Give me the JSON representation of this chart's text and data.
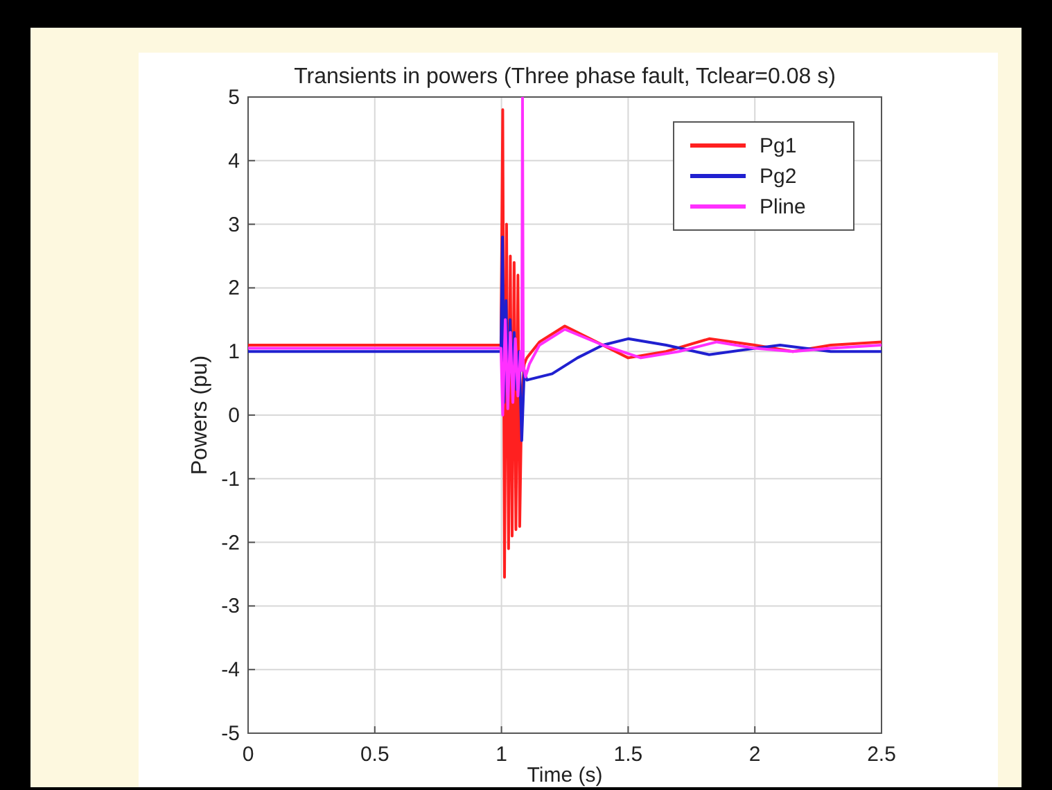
{
  "chart_data": {
    "type": "line",
    "title": "Transients in powers (Three phase fault, Tclear=0.08 s)",
    "xlabel": "Time (s)",
    "ylabel": "Powers (pu)",
    "xlim": [
      0,
      2.5
    ],
    "ylim": [
      -5,
      5
    ],
    "xticks": [
      0,
      0.5,
      1,
      1.5,
      2,
      2.5
    ],
    "yticks": [
      -5,
      -4,
      -3,
      -2,
      -1,
      0,
      1,
      2,
      3,
      4,
      5
    ],
    "grid": true,
    "legend": "top right",
    "line_style": "solid",
    "marker": "none",
    "series": [
      {
        "name": "Pg1",
        "color": "#ff2020",
        "x": [
          0,
          0.998,
          1.005,
          1.012,
          1.02,
          1.028,
          1.035,
          1.042,
          1.05,
          1.057,
          1.065,
          1.072,
          1.08,
          1.09,
          1.1,
          1.15,
          1.25,
          1.35,
          1.5,
          1.65,
          1.82,
          2.0,
          2.15,
          2.3,
          2.5
        ],
        "values": [
          1.1,
          1.1,
          4.8,
          -2.55,
          3.0,
          -2.1,
          2.5,
          -1.9,
          2.4,
          -1.8,
          2.2,
          -1.75,
          0.3,
          0.8,
          0.9,
          1.15,
          1.4,
          1.2,
          0.9,
          1.0,
          1.2,
          1.1,
          1.0,
          1.1,
          1.15
        ]
      },
      {
        "name": "Pg2",
        "color": "#2020d0",
        "x": [
          0,
          0.998,
          1.004,
          1.01,
          1.018,
          1.026,
          1.034,
          1.042,
          1.05,
          1.06,
          1.07,
          1.08,
          1.09,
          1.1,
          1.2,
          1.3,
          1.4,
          1.5,
          1.65,
          1.82,
          2.0,
          2.1,
          2.3,
          2.5
        ],
        "values": [
          1.0,
          1.0,
          2.8,
          0.2,
          1.8,
          0.3,
          1.5,
          0.5,
          1.3,
          0.4,
          1.0,
          -0.4,
          0.7,
          0.55,
          0.65,
          0.9,
          1.1,
          1.2,
          1.1,
          0.95,
          1.05,
          1.1,
          1.0,
          1.0
        ]
      },
      {
        "name": "Pline",
        "color": "#ff30ff",
        "x": [
          0,
          0.998,
          1.005,
          1.015,
          1.025,
          1.035,
          1.045,
          1.055,
          1.065,
          1.075,
          1.08,
          1.083,
          1.086,
          1.095,
          1.11,
          1.15,
          1.25,
          1.4,
          1.55,
          1.7,
          1.85,
          2.0,
          2.15,
          2.3,
          2.5
        ],
        "values": [
          1.05,
          1.05,
          0.0,
          1.5,
          0.1,
          1.3,
          0.2,
          1.2,
          0.3,
          1.0,
          0.7,
          5,
          0.8,
          0.6,
          0.8,
          1.1,
          1.35,
          1.1,
          0.9,
          1.0,
          1.15,
          1.05,
          1.0,
          1.05,
          1.1
        ]
      }
    ]
  }
}
